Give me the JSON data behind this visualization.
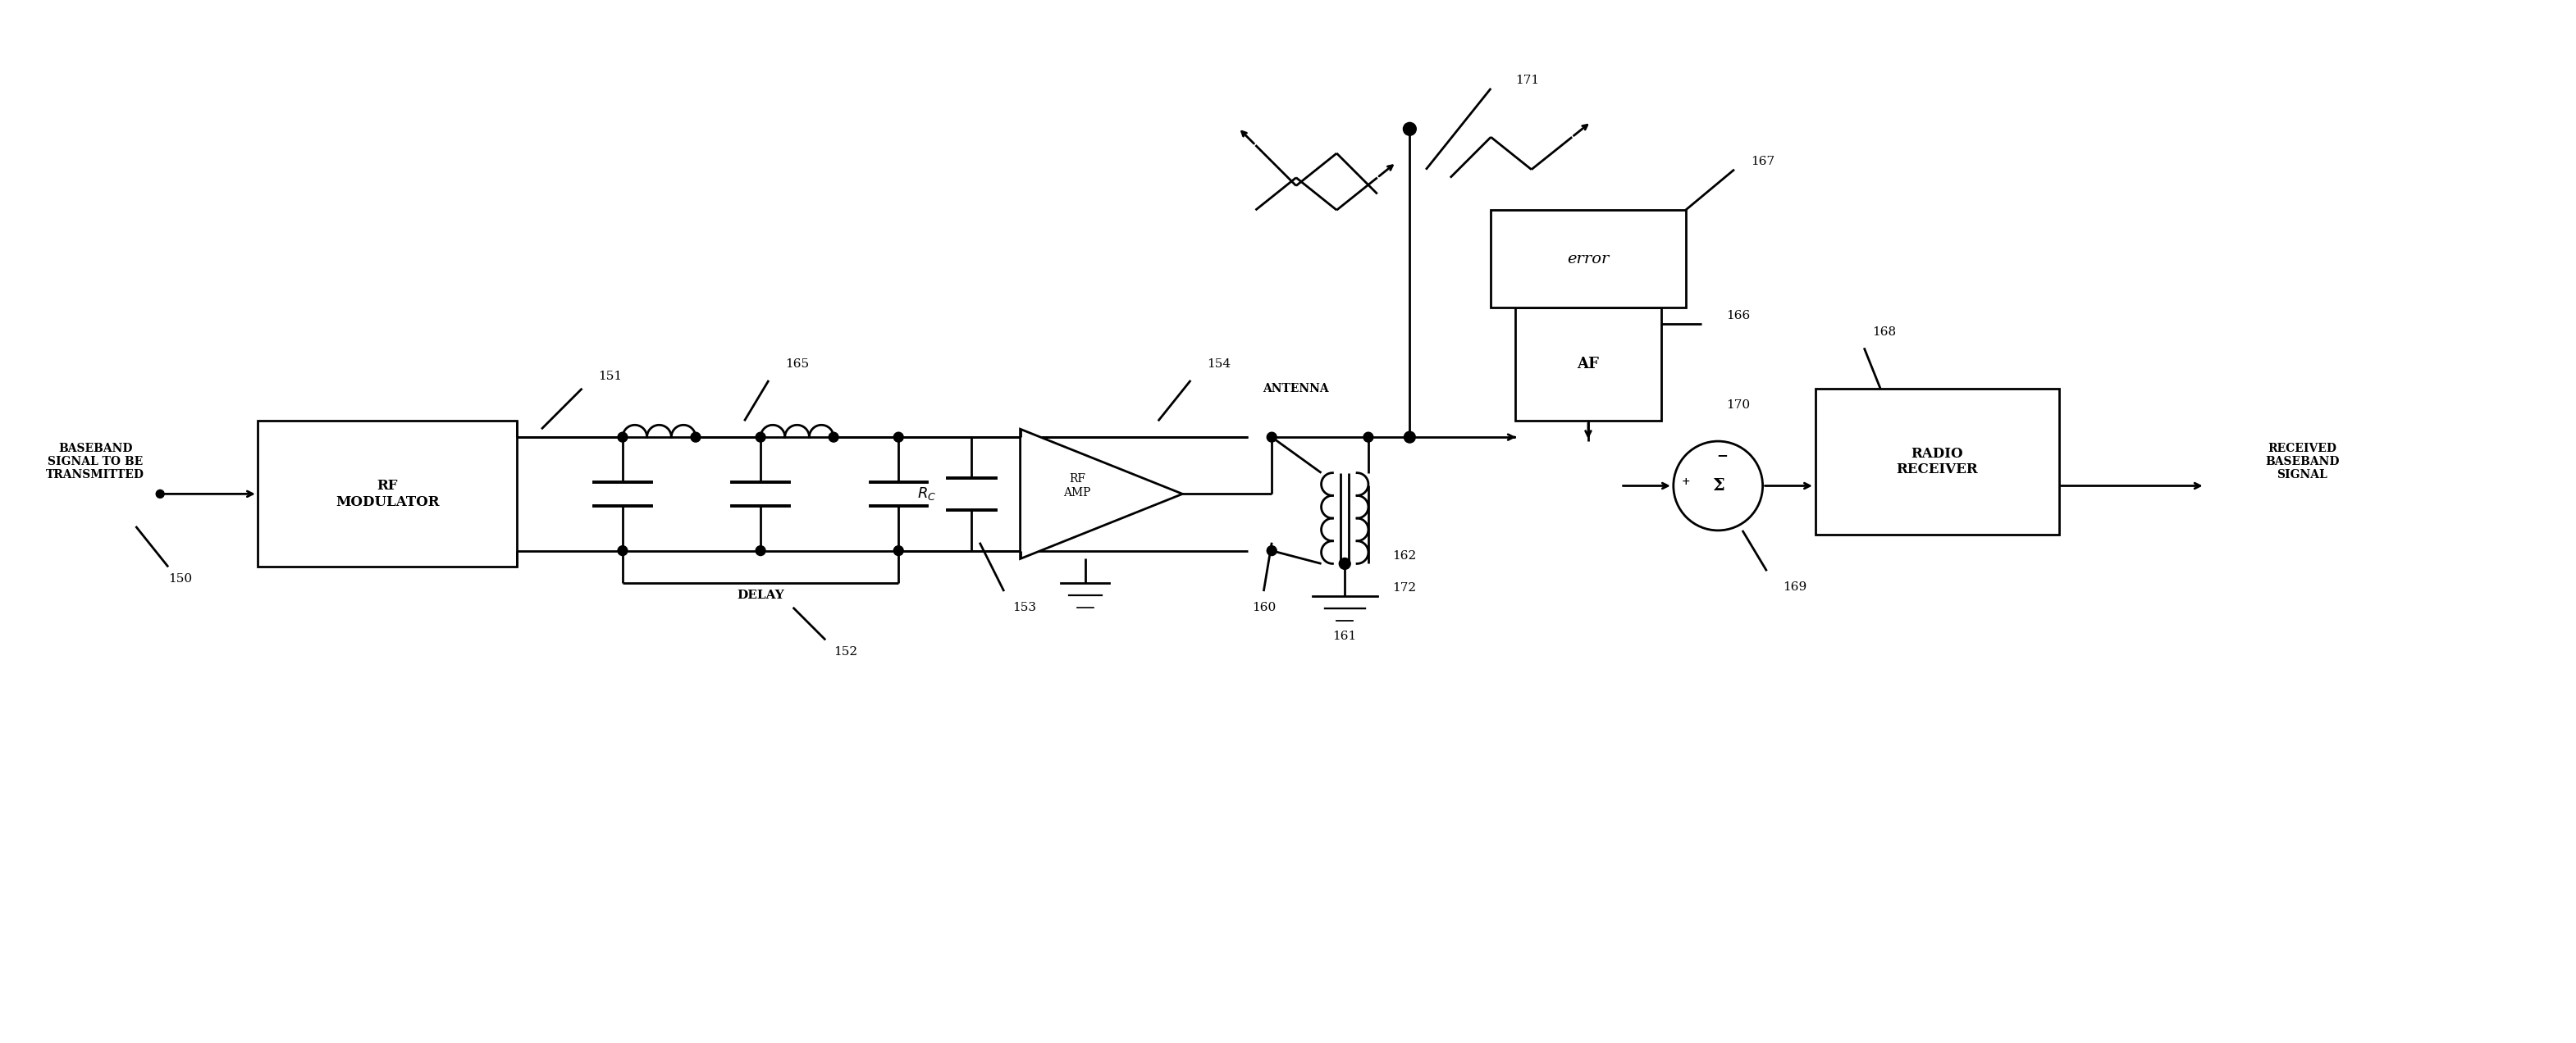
{
  "bg_color": "#ffffff",
  "line_color": "#000000",
  "fig_width": 31.4,
  "fig_height": 12.72,
  "labels": {
    "baseband_signal": "BASEBAND\nSIGNAL TO BE\nTRANSMITTED",
    "rf_modulator": "RF\nMODULATOR",
    "delay": "DELAY",
    "rc_label": "$R_C$",
    "rf_amp": "RF\nAMP",
    "antenna": "ANTENNA",
    "af": "AF",
    "error": "error",
    "sigma": "Σ",
    "minus": "−",
    "plus": "+",
    "radio_receiver": "RADIO\nRECEIVER",
    "received_baseband": "RECEIVED\nBASEBAND\nSIGNAL",
    "num_150": "150",
    "num_151": "151",
    "num_152": "152",
    "num_153": "153",
    "num_154": "154",
    "num_160": "160",
    "num_161": "161",
    "num_162": "162",
    "num_165": "165",
    "num_166": "166",
    "num_167": "167",
    "num_168": "168",
    "num_169": "169",
    "num_170": "170",
    "num_171": "171",
    "num_172": "172"
  }
}
